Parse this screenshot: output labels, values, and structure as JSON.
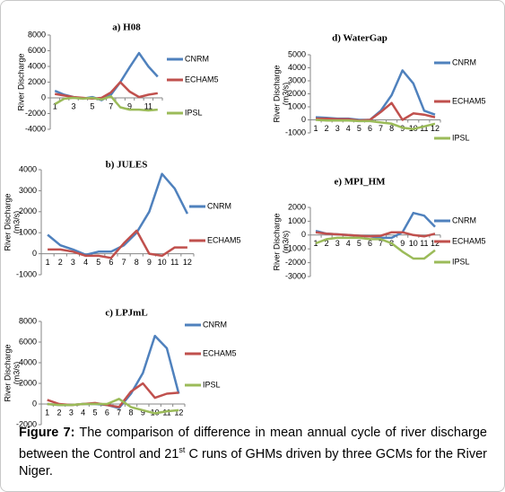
{
  "chart_data": [
    {
      "type": "line",
      "title": "a) H08",
      "ylabel": [
        "River Discharge"
      ],
      "categories": [
        "1",
        null,
        "3",
        null,
        "5",
        null,
        "7",
        null,
        "9",
        null,
        "11",
        null
      ],
      "ylim": [
        -4000,
        8000
      ],
      "yticks": [
        -4000,
        -2000,
        0,
        2000,
        4000,
        6000,
        8000
      ],
      "legend": "right",
      "series": [
        {
          "name": "CNRM",
          "color": "#4f81bd",
          "values": [
            900,
            400,
            100,
            -100,
            100,
            -300,
            400,
            2000,
            3900,
            5700,
            4000,
            2700
          ]
        },
        {
          "name": "ECHAM5",
          "color": "#c0504d",
          "values": [
            500,
            300,
            100,
            0,
            -100,
            0,
            700,
            2000,
            800,
            100,
            400,
            600
          ]
        },
        {
          "name": "IPSL",
          "color": "#9bbb59",
          "values": [
            -800,
            -100,
            0,
            -100,
            0,
            -200,
            200,
            -1200,
            -1500,
            -1500,
            -1600,
            -1500
          ]
        }
      ]
    },
    {
      "type": "line",
      "title": "b) JULES",
      "ylabel": [
        "River Discharge",
        "(m3/s)"
      ],
      "categories": [
        "1",
        "2",
        "3",
        "4",
        "5",
        "6",
        "7",
        "8",
        "9",
        "10",
        "11",
        "12"
      ],
      "ylim": [
        -1000,
        4000
      ],
      "yticks": [
        -1000,
        0,
        1000,
        2000,
        3000,
        4000
      ],
      "legend": "right",
      "series": [
        {
          "name": "CNRM",
          "color": "#4f81bd",
          "values": [
            900,
            400,
            200,
            -50,
            100,
            100,
            400,
            1000,
            2000,
            3800,
            3100,
            1900
          ]
        },
        {
          "name": "ECHAM5",
          "color": "#c0504d",
          "values": [
            200,
            200,
            100,
            -100,
            -100,
            -200,
            500,
            1100,
            0,
            -100,
            300,
            300
          ]
        }
      ]
    },
    {
      "type": "line",
      "title": "c) LPJmL",
      "ylabel": [
        "River Discharge",
        "(m3/s)"
      ],
      "categories": [
        "1",
        "2",
        "3",
        "4",
        "5",
        "6",
        "7",
        "8",
        "9",
        "10",
        "11",
        "12"
      ],
      "ylim": [
        -2000,
        8000
      ],
      "yticks": [
        -2000,
        0,
        2000,
        4000,
        6000,
        8000
      ],
      "legend": "right",
      "series": [
        {
          "name": "CNRM",
          "color": "#4f81bd",
          "values": [
            0,
            -100,
            -100,
            0,
            0,
            -100,
            -400,
            1000,
            3000,
            6600,
            5400,
            1000
          ]
        },
        {
          "name": "ECHAM5",
          "color": "#c0504d",
          "values": [
            400,
            0,
            -100,
            0,
            100,
            -100,
            -300,
            1200,
            2000,
            600,
            1000,
            1100
          ]
        },
        {
          "name": "IPSL",
          "color": "#9bbb59",
          "values": [
            0,
            -100,
            -100,
            0,
            0,
            0,
            500,
            -300,
            -600,
            -900,
            -700,
            -600
          ]
        }
      ]
    },
    {
      "type": "line",
      "title": "d) WaterGap",
      "ylabel": [
        "River Discharge",
        "(m3/s)"
      ],
      "categories": [
        "1",
        "2",
        "3",
        "4",
        "5",
        "6",
        "7",
        "8",
        "9",
        "10",
        "11",
        "12"
      ],
      "ylim": [
        -1000,
        5000
      ],
      "yticks": [
        -1000,
        0,
        1000,
        2000,
        3000,
        4000,
        5000
      ],
      "legend": "right",
      "series": [
        {
          "name": "CNRM",
          "color": "#4f81bd",
          "values": [
            200,
            150,
            100,
            100,
            0,
            0,
            700,
            1900,
            3800,
            2800,
            700,
            400
          ]
        },
        {
          "name": "ECHAM5",
          "color": "#c0504d",
          "values": [
            100,
            100,
            50,
            50,
            -50,
            0,
            600,
            1300,
            0,
            500,
            400,
            200
          ]
        },
        {
          "name": "IPSL",
          "color": "#9bbb59",
          "values": [
            0,
            -50,
            -50,
            -50,
            -100,
            -100,
            -200,
            -300,
            -600,
            -700,
            -500,
            -300
          ]
        }
      ]
    },
    {
      "type": "line",
      "title": "e) MPI_HM",
      "ylabel": [
        "River Discharge",
        "(m3/s)"
      ],
      "categories": [
        "1",
        "2",
        "3",
        "4",
        "5",
        "6",
        "7",
        "8",
        "9",
        "10",
        "11",
        "12"
      ],
      "ylim": [
        -3000,
        2000
      ],
      "yticks": [
        -3000,
        -2000,
        -1000,
        0,
        1000,
        2000
      ],
      "legend": "right",
      "series": [
        {
          "name": "CNRM",
          "color": "#4f81bd",
          "values": [
            300,
            100,
            50,
            0,
            -50,
            -100,
            -200,
            -200,
            200,
            1600,
            1400,
            600
          ]
        },
        {
          "name": "ECHAM5",
          "color": "#c0504d",
          "values": [
            200,
            100,
            50,
            0,
            -50,
            -100,
            -50,
            200,
            200,
            0,
            -100,
            100
          ]
        },
        {
          "name": "IPSL",
          "color": "#9bbb59",
          "values": [
            -600,
            -300,
            -200,
            -200,
            -200,
            -300,
            -300,
            -600,
            -1200,
            -1700,
            -1700,
            -1100
          ]
        }
      ]
    }
  ],
  "caption": {
    "label": "Figure 7:",
    "text": " The comparison of difference in mean annual cycle of river discharge between the Control and 21",
    "superscript": "st",
    "text_after": " C runs of GHMs driven by three GCMs for the River Niger."
  }
}
